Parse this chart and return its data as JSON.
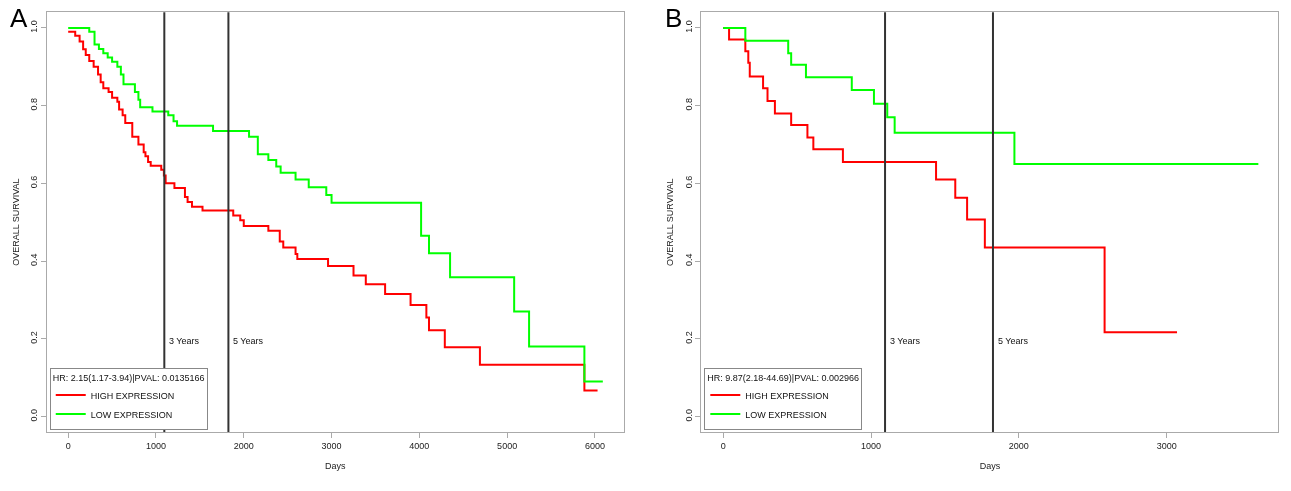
{
  "chart_data": [
    {
      "type": "step",
      "title": "A",
      "xlabel": "Days",
      "ylabel": "OVERALL SURVIVAL",
      "legend_title": "HR: 2.15(1.17-3.94)|PVAL: 0.0135166",
      "legend": "bottom left",
      "xlim": [
        -243,
        6330
      ],
      "xticks": [
        0,
        1000,
        2000,
        3000,
        4000,
        5000,
        6000
      ],
      "ylim": [
        -0.04,
        1.04
      ],
      "yticks": [
        {
          "value": 0,
          "label": "0.0"
        },
        {
          "value": 0.2,
          "label": "0.2"
        },
        {
          "value": 0.4,
          "label": "0.4"
        },
        {
          "value": 0.6,
          "label": "0.6"
        },
        {
          "value": 0.8,
          "label": "0.8"
        },
        {
          "value": 1,
          "label": "1.0"
        }
      ],
      "ref_lines": [
        {
          "axis": "x",
          "value": 1095,
          "label": "3 Years",
          "color": "#333333"
        },
        {
          "axis": "x",
          "value": 1825,
          "label": "5 Years",
          "color": "#333333"
        }
      ],
      "series": [
        {
          "name": "HIGH EXPRESSION",
          "color": "#ff0000",
          "x": [
            0,
            80,
            130,
            170,
            200,
            240,
            290,
            340,
            370,
            400,
            460,
            500,
            560,
            580,
            620,
            650,
            730,
            800,
            860,
            880,
            910,
            940,
            1060,
            1090,
            1110,
            1210,
            1330,
            1360,
            1410,
            1530,
            1880,
            1960,
            2000,
            2280,
            2410,
            2450,
            2590,
            2610,
            2960,
            3250,
            3390,
            3610,
            3900,
            4080,
            4110,
            4290,
            4690,
            5880,
            6030
          ],
          "values": [
            0.99,
            0.98,
            0.965,
            0.945,
            0.93,
            0.915,
            0.9,
            0.88,
            0.86,
            0.845,
            0.835,
            0.82,
            0.81,
            0.79,
            0.775,
            0.755,
            0.72,
            0.7,
            0.68,
            0.67,
            0.655,
            0.645,
            0.635,
            0.62,
            0.6,
            0.588,
            0.565,
            0.552,
            0.54,
            0.53,
            0.517,
            0.505,
            0.49,
            0.478,
            0.45,
            0.435,
            0.418,
            0.405,
            0.387,
            0.363,
            0.34,
            0.315,
            0.287,
            0.255,
            0.222,
            0.178,
            0.133,
            0.067,
            0.067
          ]
        },
        {
          "name": "LOW EXPRESSION",
          "color": "#00ff00",
          "x": [
            0,
            240,
            300,
            350,
            400,
            450,
            500,
            560,
            600,
            630,
            760,
            800,
            820,
            960,
            1140,
            1200,
            1240,
            1650,
            2060,
            2160,
            2280,
            2370,
            2420,
            2590,
            2740,
            2940,
            3000,
            4020,
            4110,
            4350,
            5080,
            5250,
            5880,
            6090
          ],
          "values": [
            1.0,
            0.99,
            0.957,
            0.946,
            0.935,
            0.924,
            0.913,
            0.9,
            0.88,
            0.855,
            0.835,
            0.815,
            0.796,
            0.785,
            0.775,
            0.76,
            0.748,
            0.735,
            0.72,
            0.675,
            0.66,
            0.643,
            0.627,
            0.61,
            0.59,
            0.57,
            0.55,
            0.465,
            0.42,
            0.358,
            0.27,
            0.18,
            0.09,
            0.09
          ]
        }
      ]
    },
    {
      "type": "step",
      "title": "B",
      "xlabel": "Days",
      "ylabel": "OVERALL SURVIVAL",
      "legend_title": "HR: 9.87(2.18-44.69)|PVAL: 0.002966",
      "legend": "bottom left",
      "xlim": [
        -147,
        3756
      ],
      "xticks": [
        0,
        1000,
        2000,
        3000
      ],
      "ylim": [
        -0.04,
        1.04
      ],
      "yticks": [
        {
          "value": 0,
          "label": "0.0"
        },
        {
          "value": 0.2,
          "label": "0.2"
        },
        {
          "value": 0.4,
          "label": "0.4"
        },
        {
          "value": 0.6,
          "label": "0.6"
        },
        {
          "value": 0.8,
          "label": "0.8"
        },
        {
          "value": 1,
          "label": "1.0"
        }
      ],
      "ref_lines": [
        {
          "axis": "x",
          "value": 1095,
          "label": "3 Years",
          "color": "#333333"
        },
        {
          "axis": "x",
          "value": 1825,
          "label": "5 Years",
          "color": "#333333"
        }
      ],
      "series": [
        {
          "name": "HIGH EXPRESSION",
          "color": "#ff0000",
          "x": [
            0,
            40,
            150,
            170,
            180,
            270,
            300,
            350,
            460,
            570,
            610,
            810,
            1440,
            1570,
            1650,
            1770,
            2580,
            3070
          ],
          "values": [
            1.0,
            0.97,
            0.94,
            0.91,
            0.875,
            0.845,
            0.812,
            0.78,
            0.75,
            0.718,
            0.688,
            0.655,
            0.61,
            0.563,
            0.507,
            0.435,
            0.217,
            0.217
          ]
        },
        {
          "name": "LOW EXPRESSION",
          "color": "#00ff00",
          "x": [
            0,
            150,
            440,
            460,
            560,
            870,
            1020,
            1110,
            1160,
            1970,
            3620
          ],
          "values": [
            1.0,
            0.967,
            0.935,
            0.905,
            0.873,
            0.84,
            0.805,
            0.77,
            0.73,
            0.65,
            0.65
          ]
        }
      ]
    }
  ]
}
